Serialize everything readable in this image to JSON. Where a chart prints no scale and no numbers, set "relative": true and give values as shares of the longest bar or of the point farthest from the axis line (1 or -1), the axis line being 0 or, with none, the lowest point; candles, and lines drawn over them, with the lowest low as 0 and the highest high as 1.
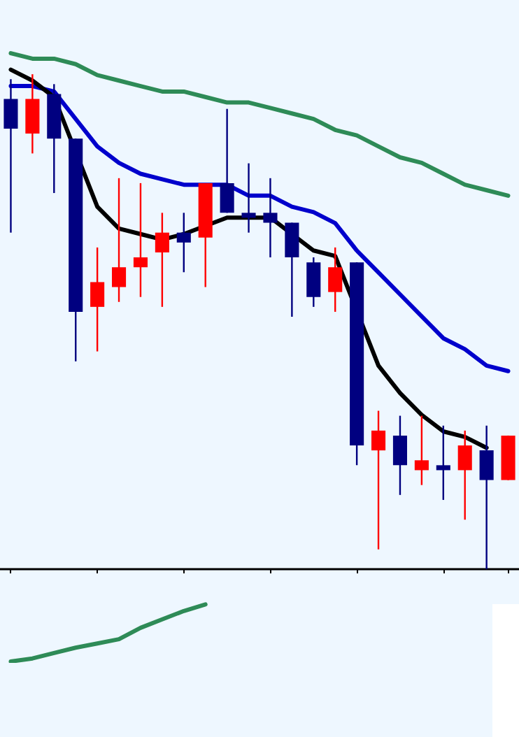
{
  "chart_data": [
    {
      "type": "candlestick",
      "relative": true,
      "tick_labels": false,
      "categories": [
        null,
        null,
        null,
        null,
        null,
        null,
        null,
        null,
        null,
        null,
        null,
        null,
        null,
        null,
        null,
        null,
        null,
        null,
        null,
        null,
        null,
        null,
        null,
        null
      ],
      "ohlc": [
        [
          0.95,
          0.99,
          0.68,
          0.89
        ],
        [
          0.88,
          1.0,
          0.84,
          0.95
        ],
        [
          0.96,
          0.98,
          0.76,
          0.87
        ],
        [
          0.87,
          0.87,
          0.42,
          0.52
        ],
        [
          0.53,
          0.65,
          0.44,
          0.58
        ],
        [
          0.57,
          0.79,
          0.54,
          0.61
        ],
        [
          0.61,
          0.78,
          0.55,
          0.63
        ],
        [
          0.64,
          0.72,
          0.53,
          0.68
        ],
        [
          0.68,
          0.72,
          0.6,
          0.66
        ],
        [
          0.67,
          0.78,
          0.57,
          0.78
        ],
        [
          0.78,
          0.93,
          0.72,
          0.72
        ],
        [
          0.72,
          0.82,
          0.68,
          0.71
        ],
        [
          0.72,
          0.79,
          0.63,
          0.7
        ],
        [
          0.7,
          0.7,
          0.51,
          0.63
        ],
        [
          0.62,
          0.63,
          0.53,
          0.55
        ],
        [
          0.56,
          0.65,
          0.52,
          0.61
        ],
        [
          0.62,
          0.62,
          0.21,
          0.25
        ],
        [
          0.24,
          0.32,
          0.04,
          0.28
        ],
        [
          0.27,
          0.31,
          0.15,
          0.21
        ],
        [
          0.2,
          0.31,
          0.17,
          0.22
        ],
        [
          0.21,
          0.29,
          0.14,
          0.2
        ],
        [
          0.2,
          0.28,
          0.1,
          0.25
        ],
        [
          0.24,
          0.29,
          0.0,
          0.18
        ],
        [
          0.18,
          0.27,
          0.18,
          0.27
        ]
      ],
      "colors": [
        "#000080",
        "#ff0000",
        "#000080",
        "#000080",
        "#ff0000",
        "#ff0000",
        "#ff0000",
        "#ff0000",
        "#000080",
        "#ff0000",
        "#000080",
        "#000080",
        "#000080",
        "#000080",
        "#000080",
        "#ff0000",
        "#000080",
        "#ff0000",
        "#000080",
        "#ff0000",
        "#000080",
        "#ff0000",
        "#000080",
        "#ff0000"
      ]
    },
    {
      "type": "line",
      "relative": true,
      "tick_labels": false,
      "marker": "none",
      "categories": [
        null,
        null,
        null,
        null,
        null,
        null,
        null,
        null,
        null,
        null,
        null,
        null,
        null,
        null,
        null,
        null,
        null,
        null,
        null,
        null,
        null,
        null,
        null,
        null
      ],
      "series": [
        {
          "color": "#2e8b57",
          "values": [
            1.0,
            0.99,
            0.99,
            0.98,
            0.96,
            0.95,
            0.94,
            0.93,
            0.93,
            0.92,
            0.91,
            0.91,
            0.9,
            0.89,
            0.88,
            0.86,
            0.85,
            0.83,
            0.81,
            0.8,
            0.78,
            0.76,
            0.75,
            0.74
          ]
        },
        {
          "color": "#0000cc",
          "values": [
            0.94,
            0.94,
            0.93,
            0.88,
            0.83,
            0.8,
            0.78,
            0.77,
            0.76,
            0.76,
            0.76,
            0.74,
            0.74,
            0.72,
            0.71,
            0.69,
            0.64,
            0.6,
            0.56,
            0.52,
            0.48,
            0.46,
            0.43,
            0.42
          ]
        },
        {
          "color": "#000000",
          "values": [
            0.97,
            0.95,
            0.92,
            null,
            0.72,
            0.68,
            0.67,
            0.66,
            0.67,
            null,
            0.7,
            0.7,
            0.7,
            null,
            0.64,
            0.63,
            null,
            0.43,
            0.38,
            0.34,
            0.31,
            0.3,
            0.28,
            null
          ]
        }
      ]
    },
    {
      "type": "line",
      "relative": true,
      "tick_labels": false,
      "marker": "none",
      "categories": [
        null,
        null,
        null,
        null,
        null,
        null,
        null,
        null,
        null,
        null
      ],
      "series": [
        {
          "color": "#2e8b57",
          "values": [
            -1.0,
            -0.95,
            -0.86,
            -0.77,
            -0.7,
            -0.63,
            -0.44,
            -0.3,
            -0.16,
            -0.05
          ]
        }
      ]
    }
  ]
}
